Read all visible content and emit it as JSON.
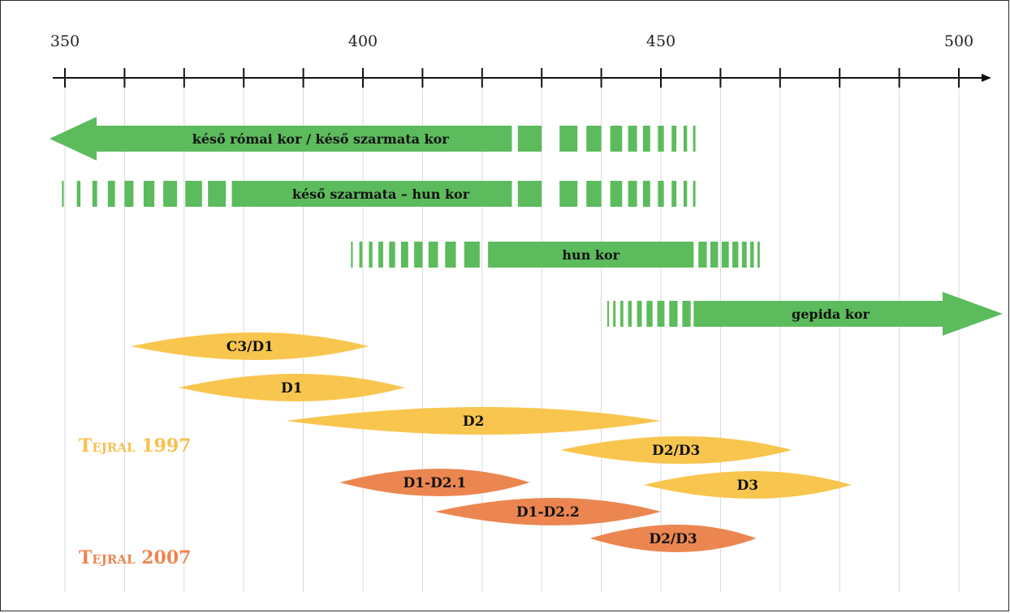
{
  "axis": {
    "min": 345,
    "max": 505,
    "tick_step": 10,
    "labeled_ticks": [
      350,
      400,
      450,
      500
    ]
  },
  "colors": {
    "green": "#5cbb5c",
    "yellow": "#f8c64e",
    "orange": "#ec8651",
    "tejral1997": "#f7c04e",
    "tejral2007": "#ec8651"
  },
  "periods": [
    {
      "label": "késő római kor / késő szarmata kor",
      "solid": [
        345,
        425
      ],
      "dashes": [
        [
          426,
          430
        ],
        [
          433,
          436
        ],
        [
          437.5,
          440
        ],
        [
          441.5,
          443.5
        ],
        [
          444.5,
          446
        ],
        [
          447,
          448.2
        ],
        [
          449.5,
          450.5
        ],
        [
          451.8,
          452.6
        ],
        [
          453.8,
          454.4
        ],
        [
          455.4,
          455.8
        ]
      ],
      "arrow": "left"
    },
    {
      "label": "késő szarmata – hun kor",
      "solid": [
        381,
        425
      ],
      "dashes": [
        [
          349.5,
          349.8
        ],
        [
          352,
          352.6
        ],
        [
          354.6,
          355.4
        ],
        [
          357.2,
          358.4
        ],
        [
          360,
          361.5
        ],
        [
          363.2,
          365
        ],
        [
          366.5,
          368.8
        ],
        [
          370.2,
          373
        ],
        [
          374,
          377
        ],
        [
          378,
          381
        ],
        [
          426,
          430
        ],
        [
          433,
          436
        ],
        [
          437.5,
          440
        ],
        [
          441.5,
          443.5
        ],
        [
          444.5,
          446
        ],
        [
          447,
          448.2
        ],
        [
          449.5,
          450.5
        ],
        [
          451.8,
          452.6
        ],
        [
          453.8,
          454.4
        ],
        [
          455.4,
          455.8
        ]
      ],
      "arrow": "none"
    },
    {
      "label": "hun kor",
      "solid": [
        421,
        455.5
      ],
      "dashes": [
        [
          398,
          398.3
        ],
        [
          399.4,
          399.9
        ],
        [
          401,
          401.6
        ],
        [
          402.6,
          403.4
        ],
        [
          404.4,
          405.4
        ],
        [
          406.4,
          407.6
        ],
        [
          408.6,
          410
        ],
        [
          411,
          412.6
        ],
        [
          413.8,
          415.6
        ],
        [
          417,
          419.6
        ],
        [
          456.3,
          457.7
        ],
        [
          458.3,
          459.6
        ],
        [
          460.2,
          461.4
        ],
        [
          462,
          463
        ],
        [
          463.6,
          464.4
        ],
        [
          465,
          465.6
        ],
        [
          466.2,
          466.6
        ]
      ],
      "arrow": "none"
    },
    {
      "label": "gepida kor",
      "solid": [
        455.5,
        502
      ],
      "dashes": [
        [
          441,
          441.3
        ],
        [
          442,
          442.4
        ],
        [
          443.2,
          443.7
        ],
        [
          444.5,
          445.1
        ],
        [
          446,
          446.8
        ],
        [
          447.6,
          448.6
        ],
        [
          449.4,
          450.6
        ],
        [
          451.4,
          452.8
        ],
        [
          453.6,
          455
        ]
      ],
      "arrow": "right"
    }
  ],
  "phases_1997": [
    {
      "label": "C3/D1",
      "start": 363,
      "end": 401
    },
    {
      "label": "D1",
      "start": 371,
      "end": 407
    },
    {
      "label": "D2",
      "start": 389,
      "end": 450
    },
    {
      "label": "D2/D3",
      "start": 435,
      "end": 472
    },
    {
      "label": "D3",
      "start": 449,
      "end": 482
    }
  ],
  "phases_2007": [
    {
      "label": "D1-D2.1",
      "start": 398,
      "end": 428
    },
    {
      "label": "D1-D2.2",
      "start": 414,
      "end": 450
    },
    {
      "label": "D2/D3",
      "start": 440,
      "end": 466
    }
  ],
  "sources": {
    "tejral1997": "Tejral 1997",
    "tejral2007": "Tejral 2007"
  }
}
